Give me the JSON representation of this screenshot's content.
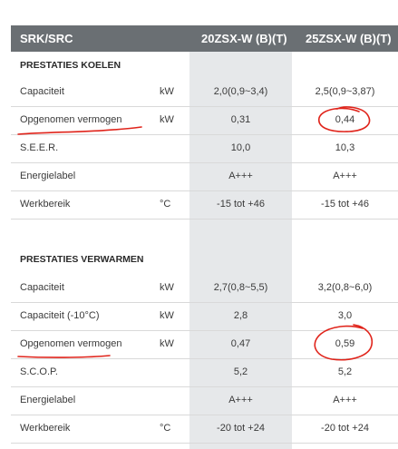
{
  "header": {
    "model": "SRK/SRC",
    "col1": "20ZSX-W (B)(T)",
    "col2": "25ZSX-W (B)(T)"
  },
  "cooling": {
    "title": "PRESTATIES KOELEN",
    "rows": [
      {
        "label": "Capaciteit",
        "unit": "kW",
        "v1": "2,0(0,9~3,4)",
        "v2": "2,5(0,9~3,87)"
      },
      {
        "label": "Opgenomen vermogen",
        "unit": "kW",
        "v1": "0,31",
        "v2": "0,44"
      },
      {
        "label": "S.E.E.R.",
        "unit": "",
        "v1": "10,0",
        "v2": "10,3"
      },
      {
        "label": "Energielabel",
        "unit": "",
        "v1": "A+++",
        "v2": "A+++"
      },
      {
        "label": "Werkbereik",
        "unit": "°C",
        "v1": "-15 tot +46",
        "v2": "-15 tot +46"
      }
    ]
  },
  "heating": {
    "title": "PRESTATIES VERWARMEN",
    "rows": [
      {
        "label": "Capaciteit",
        "unit": "kW",
        "v1": "2,7(0,8~5,5)",
        "v2": "3,2(0,8~6,0)"
      },
      {
        "label": "Capaciteit (-10°C)",
        "unit": "kW",
        "v1": "2,8",
        "v2": "3,0"
      },
      {
        "label": "Opgenomen vermogen",
        "unit": "kW",
        "v1": "0,47",
        "v2": "0,59"
      },
      {
        "label": "S.C.O.P.",
        "unit": "",
        "v1": "5,2",
        "v2": "5,2"
      },
      {
        "label": "Energielabel",
        "unit": "",
        "v1": "A+++",
        "v2": "A+++"
      },
      {
        "label": "Werkbereik",
        "unit": "°C",
        "v1": "-20 tot +24",
        "v2": "-20 tot +24"
      }
    ]
  },
  "colors": {
    "header_bg": "#6a6f73",
    "highlight_column": "#e6e8ea",
    "annotation_ink": "#e0241b"
  }
}
